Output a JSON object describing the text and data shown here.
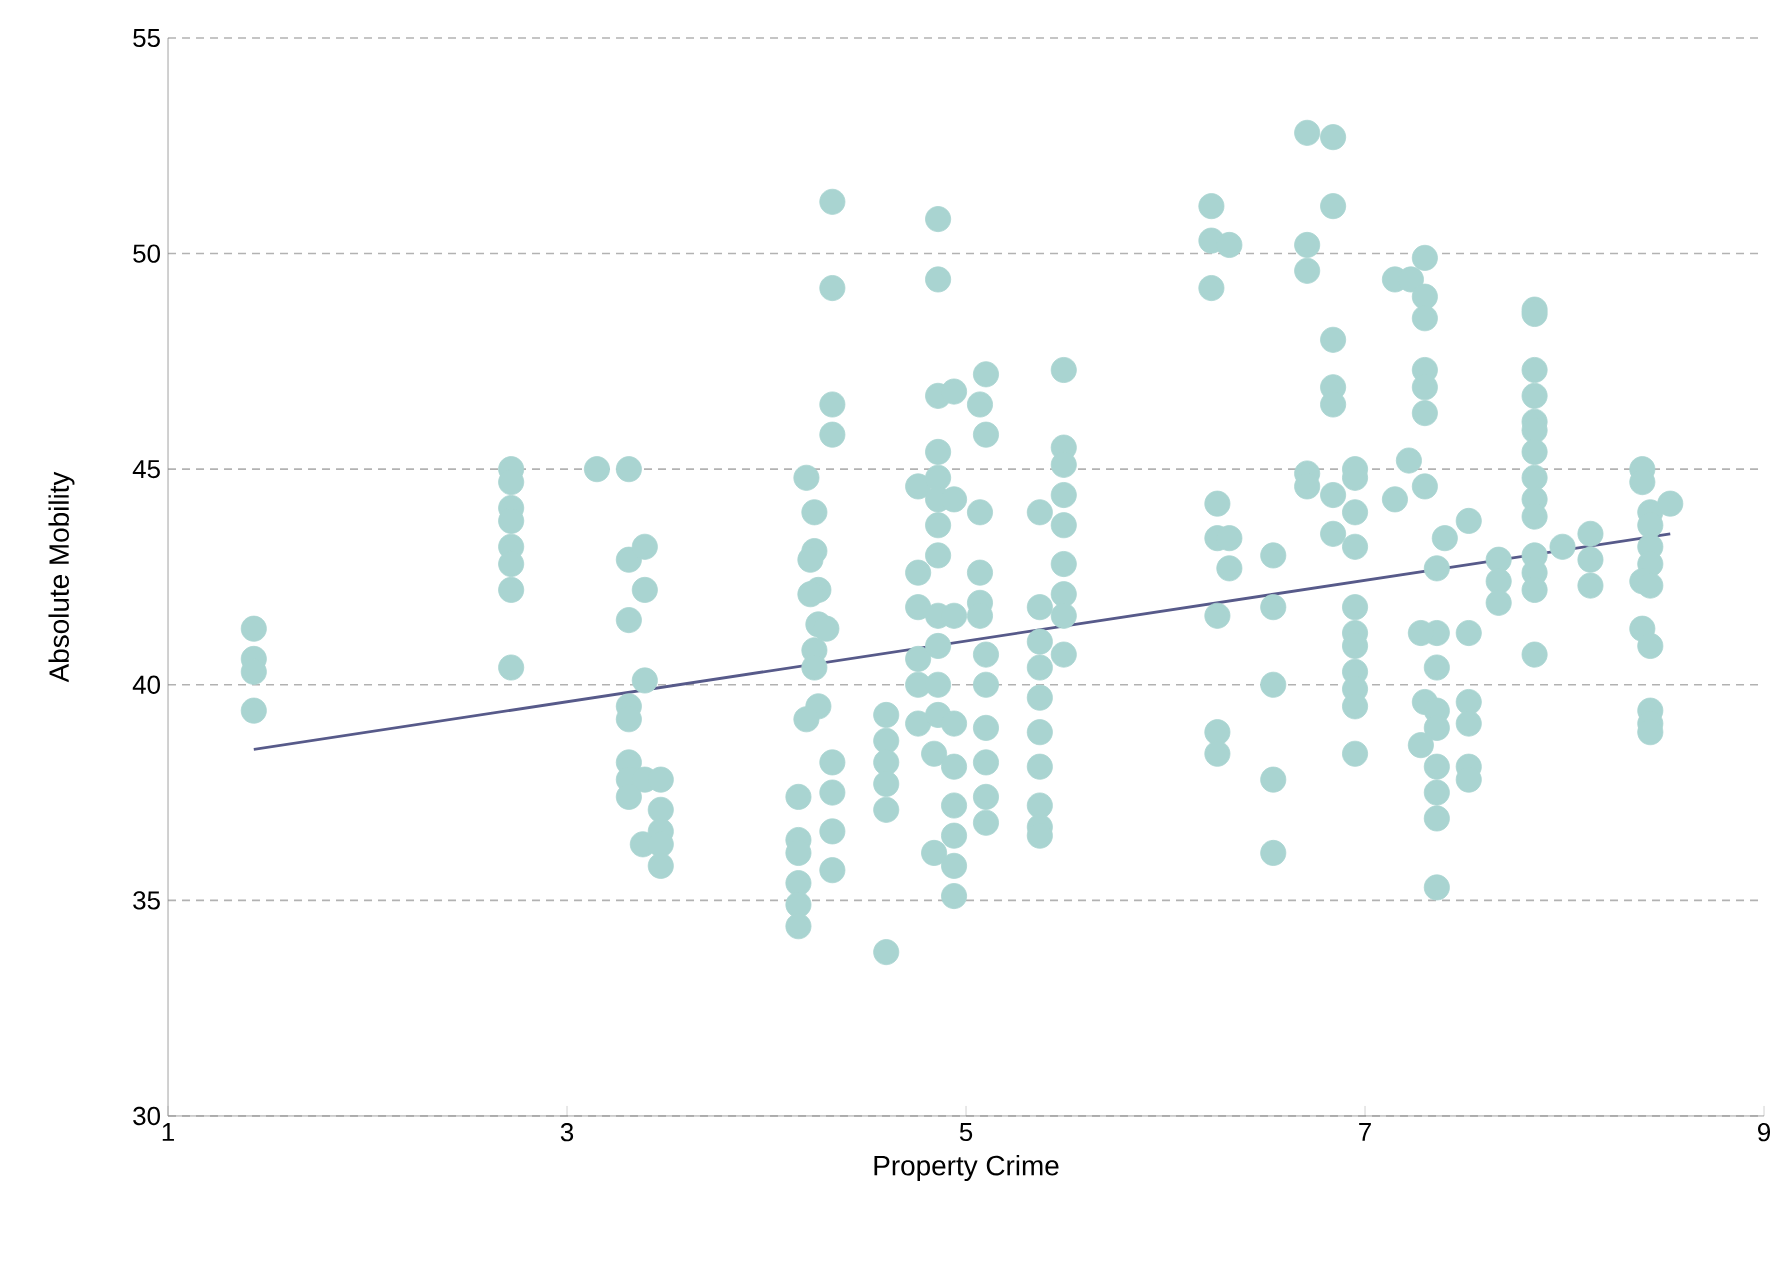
{
  "chart_data": {
    "type": "scatter",
    "xlabel": "Property Crime",
    "ylabel": "Absolute Mobility",
    "xlim": [
      1,
      9
    ],
    "ylim": [
      30,
      55
    ],
    "xticks": [
      1,
      3,
      5,
      7,
      9
    ],
    "yticks": [
      30,
      35,
      40,
      45,
      50,
      55
    ],
    "grid": "y",
    "series": [
      {
        "marker": "circle",
        "color": "#a9d4d1",
        "x": [
          1.43,
          1.43,
          1.43,
          1.43,
          2.72,
          2.72,
          2.72,
          2.72,
          2.72,
          2.72,
          2.72,
          2.72,
          3.15,
          3.31,
          3.31,
          3.39,
          3.39,
          3.31,
          3.39,
          3.31,
          3.31,
          3.31,
          3.31,
          3.39,
          3.47,
          3.31,
          3.47,
          3.47,
          3.38,
          3.47,
          3.47,
          4.16,
          4.16,
          4.16,
          4.16,
          4.16,
          4.16,
          4.2,
          4.24,
          4.24,
          4.22,
          4.26,
          4.22,
          4.26,
          4.3,
          4.24,
          4.24,
          4.26,
          4.2,
          4.33,
          4.33,
          4.33,
          4.33,
          4.33,
          4.33,
          4.33,
          4.33,
          4.6,
          4.6,
          4.6,
          4.6,
          4.6,
          4.6,
          4.76,
          4.76,
          4.76,
          4.76,
          4.76,
          4.76,
          4.84,
          4.86,
          4.86,
          4.86,
          4.86,
          4.86,
          4.86,
          4.86,
          4.86,
          4.86,
          4.86,
          4.86,
          4.86,
          4.94,
          4.94,
          4.94,
          4.94,
          4.94,
          4.94,
          4.94,
          4.94,
          4.94,
          4.84,
          5.1,
          5.07,
          5.1,
          5.07,
          5.07,
          5.07,
          5.07,
          5.1,
          5.1,
          5.1,
          5.1,
          5.1,
          5.1,
          5.37,
          5.37,
          5.37,
          5.37,
          5.37,
          5.37,
          5.37,
          5.37,
          5.37,
          5.37,
          5.49,
          5.49,
          5.49,
          5.49,
          5.49,
          5.49,
          5.49,
          5.49,
          5.49,
          6.23,
          6.23,
          6.23,
          6.32,
          6.26,
          6.26,
          6.32,
          6.32,
          6.26,
          6.26,
          6.26,
          6.54,
          6.54,
          6.54,
          6.54,
          6.54,
          6.71,
          6.71,
          6.71,
          6.71,
          6.71,
          6.84,
          6.84,
          6.84,
          6.84,
          6.84,
          6.84,
          6.84,
          6.95,
          6.95,
          6.95,
          6.95,
          6.95,
          6.95,
          6.95,
          6.95,
          6.95,
          6.95,
          6.95,
          7.15,
          7.23,
          7.3,
          7.3,
          7.3,
          7.3,
          7.3,
          7.3,
          7.22,
          7.3,
          7.15,
          7.4,
          7.52,
          7.36,
          7.36,
          7.28,
          7.52,
          7.36,
          7.3,
          7.36,
          7.36,
          7.28,
          7.36,
          7.36,
          7.36,
          7.36,
          7.52,
          7.52,
          7.52,
          7.52,
          7.67,
          7.67,
          7.67,
          7.85,
          7.85,
          7.85,
          7.85,
          7.85,
          7.85,
          7.85,
          7.85,
          7.85,
          7.85,
          7.85,
          7.85,
          7.85,
          7.85,
          7.99,
          8.13,
          8.13,
          8.13,
          8.39,
          8.39,
          8.43,
          8.43,
          8.43,
          8.43,
          8.39,
          8.43,
          8.39,
          8.43,
          8.43,
          8.43,
          8.43,
          8.53
        ],
        "values": [
          41.3,
          40.6,
          40.3,
          39.4,
          45.0,
          44.7,
          44.1,
          43.8,
          43.2,
          42.8,
          42.2,
          40.4,
          45.0,
          45.0,
          42.9,
          43.2,
          42.2,
          41.5,
          40.1,
          39.5,
          39.2,
          38.2,
          37.8,
          37.8,
          37.8,
          37.4,
          37.1,
          36.6,
          36.3,
          36.3,
          35.8,
          37.4,
          36.4,
          36.1,
          35.4,
          34.9,
          34.4,
          44.8,
          44.0,
          43.1,
          42.9,
          42.2,
          42.1,
          41.4,
          41.3,
          40.8,
          40.4,
          39.5,
          39.2,
          51.2,
          49.2,
          46.5,
          45.8,
          38.2,
          37.5,
          36.6,
          35.7,
          39.3,
          38.7,
          38.2,
          37.7,
          37.1,
          33.8,
          44.6,
          42.6,
          41.8,
          40.6,
          40.0,
          39.1,
          38.4,
          50.8,
          49.4,
          46.7,
          45.4,
          44.8,
          44.3,
          43.7,
          43.0,
          41.6,
          40.9,
          40.0,
          39.3,
          46.8,
          44.3,
          41.6,
          39.1,
          38.1,
          37.2,
          36.5,
          35.8,
          35.1,
          36.1,
          47.2,
          46.5,
          45.8,
          44.0,
          42.6,
          41.9,
          41.6,
          40.7,
          40.0,
          39.0,
          38.2,
          37.4,
          36.8,
          44.0,
          41.8,
          41.0,
          40.4,
          39.7,
          38.9,
          38.1,
          37.2,
          36.7,
          36.5,
          47.3,
          45.5,
          45.1,
          44.4,
          43.7,
          42.8,
          42.1,
          41.6,
          40.7,
          51.1,
          50.3,
          49.2,
          50.2,
          44.2,
          43.4,
          43.4,
          42.7,
          41.6,
          38.9,
          38.4,
          43.0,
          41.8,
          40.0,
          37.8,
          36.1,
          52.8,
          50.2,
          49.6,
          44.9,
          44.6,
          52.7,
          51.1,
          48.0,
          46.9,
          46.5,
          44.4,
          43.5,
          45.0,
          44.8,
          44.0,
          43.2,
          41.8,
          41.2,
          40.9,
          40.3,
          39.9,
          39.5,
          38.4,
          49.4,
          49.4,
          49.9,
          49.0,
          48.5,
          47.3,
          46.9,
          46.3,
          45.2,
          44.6,
          44.3,
          43.4,
          43.8,
          42.7,
          41.2,
          41.2,
          41.2,
          40.4,
          39.6,
          39.4,
          39.0,
          38.6,
          38.1,
          37.5,
          36.9,
          35.3,
          39.6,
          39.1,
          38.1,
          37.8,
          42.9,
          42.4,
          41.9,
          48.7,
          48.6,
          47.3,
          46.7,
          46.1,
          45.9,
          45.4,
          44.8,
          44.3,
          43.9,
          43.0,
          42.6,
          42.2,
          40.7,
          43.2,
          43.5,
          42.9,
          42.3,
          45.0,
          44.7,
          44.0,
          43.7,
          43.2,
          42.8,
          42.4,
          42.3,
          41.3,
          40.9,
          39.4,
          39.1,
          38.9,
          44.2
        ]
      },
      {
        "type": "line",
        "marker": "none",
        "color": "#575a8a",
        "x": [
          1.43,
          8.53
        ],
        "values": [
          38.5,
          43.5
        ]
      }
    ]
  }
}
